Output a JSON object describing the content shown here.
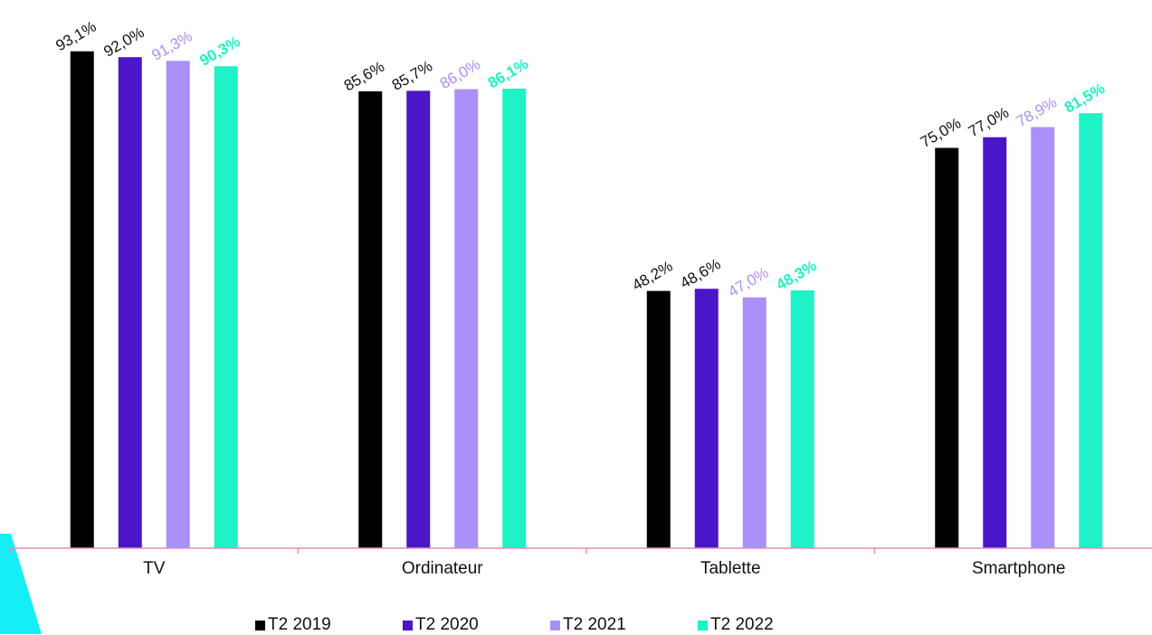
{
  "chart_data": {
    "type": "bar",
    "categories": [
      "TV",
      "Ordinateur",
      "Tablette",
      "Smartphone"
    ],
    "series": [
      {
        "name": "T2 2019",
        "color": "#000000",
        "label_color": "#111111",
        "values": [
          93.1,
          85.6,
          48.2,
          75.0
        ],
        "labels": [
          "93,1%",
          "85,6%",
          "48,2%",
          "75,0%"
        ],
        "bold": false
      },
      {
        "name": "T2 2020",
        "color": "#4a16c8",
        "label_color": "#111111",
        "values": [
          92.0,
          85.7,
          48.6,
          77.0
        ],
        "labels": [
          "92,0%",
          "85,7%",
          "48,6%",
          "77,0%"
        ],
        "bold": false
      },
      {
        "name": "T2 2021",
        "color": "#ab8ffa",
        "label_color": "#ab8ffa",
        "values": [
          91.3,
          86.0,
          47.0,
          78.9
        ],
        "labels": [
          "91,3%",
          "86,0%",
          "47,0%",
          "78,9%"
        ],
        "bold": false
      },
      {
        "name": "T2 2022",
        "color": "#1ef2c6",
        "label_color": "#1ef2c6",
        "values": [
          90.3,
          86.1,
          48.3,
          81.5
        ],
        "labels": [
          "90,3%",
          "86,1%",
          "48,3%",
          "81,5%"
        ],
        "bold": true
      }
    ],
    "ylim": [
      0,
      100
    ],
    "grid": false,
    "legend_position": "bottom",
    "axis_color": "#e48abf",
    "accent_shape_color": "#14eef5"
  }
}
